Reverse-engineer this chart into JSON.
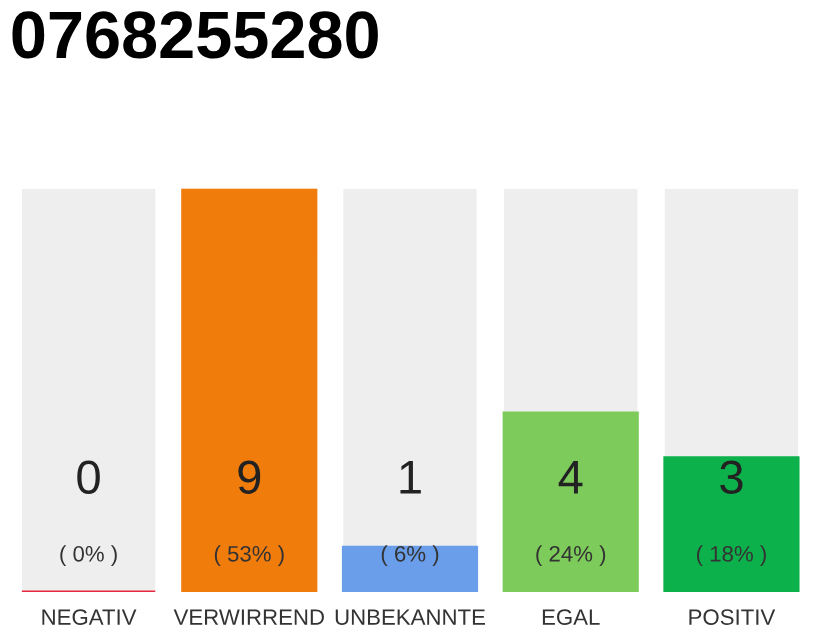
{
  "chart_data": {
    "type": "bar",
    "title": "0768255280",
    "categories": [
      "NEGATIV",
      "VERWIRREND",
      "UNBEKANNTE",
      "EGAL",
      "POSITIV"
    ],
    "values": [
      0,
      9,
      1,
      4,
      3
    ],
    "colors": [
      "#e8283c",
      "#f07c0c",
      "#6a9eea",
      "#7dcb5a",
      "#0db14b"
    ],
    "data_labels": true,
    "annotations": [
      "( 0% )",
      "( 53% )",
      "( 6% )",
      "( 24% )",
      "( 18% )"
    ],
    "grid": false,
    "legend": false
  }
}
